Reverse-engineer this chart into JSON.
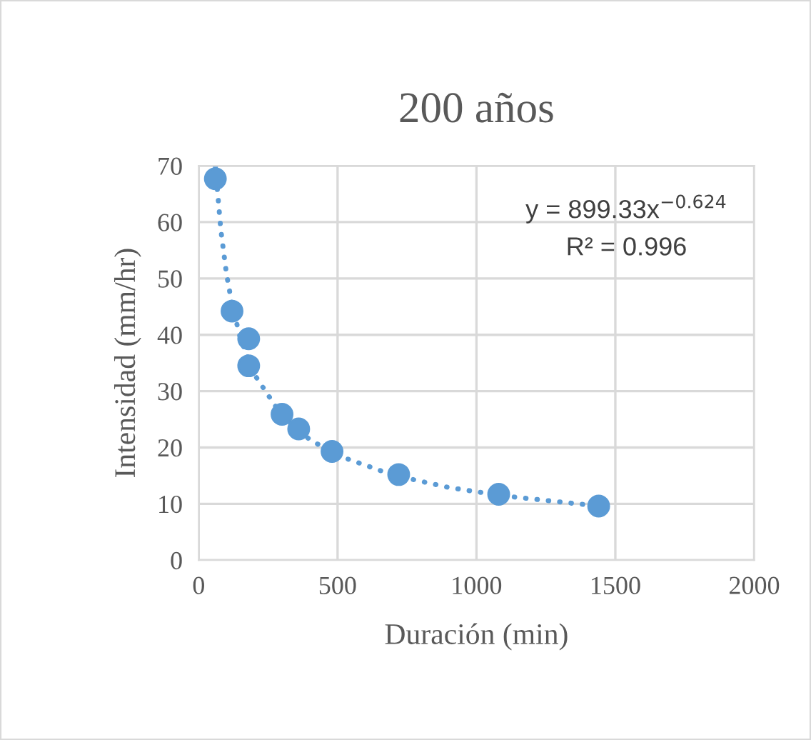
{
  "chart_data": {
    "type": "scatter",
    "title": "200 años",
    "xlabel": "Duración (min)",
    "ylabel": "Intensidad (mm/hr)",
    "xlim": [
      0,
      2000
    ],
    "xticks": [
      0,
      500,
      1000,
      1500,
      2000
    ],
    "ylim": [
      0,
      70
    ],
    "yticks": [
      0,
      10,
      20,
      30,
      40,
      50,
      60,
      70
    ],
    "grid": true,
    "legend": false,
    "annotations": [
      "y = 899.33x$^{−0.624}$",
      "R² = 0.996"
    ],
    "series": [
      {
        "color": "#5b9bd5",
        "marker": "circle",
        "x": [
          60,
          120,
          180,
          180,
          300,
          360,
          480,
          720,
          1080,
          1440
        ],
        "values": [
          67.7,
          44.2,
          39.3,
          34.5,
          25.9,
          23.3,
          19.3,
          15.2,
          11.7,
          9.6
        ]
      },
      {
        "type": "line",
        "color": "#5b9bd5",
        "marker": "none",
        "line_style": "dotted",
        "x": [
          60,
          80,
          100,
          120,
          150,
          200,
          300,
          400,
          500,
          700,
          900,
          1100,
          1440
        ],
        "values": [
          69.9,
          58.5,
          50.8,
          45.4,
          39.4,
          33.0,
          25.6,
          21.4,
          18.6,
          15.1,
          12.9,
          11.4,
          9.6
        ]
      }
    ]
  }
}
